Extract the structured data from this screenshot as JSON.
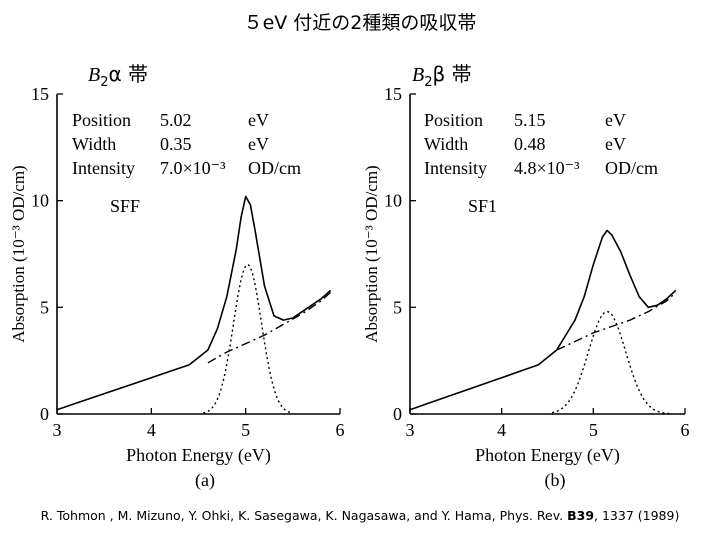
{
  "slide": {
    "title": "５eV 付近の2種類の吸収帯"
  },
  "bands": {
    "a": {
      "letter": "B",
      "sub": "2",
      "greek": "α",
      "kanji": "帯"
    },
    "b": {
      "letter": "B",
      "sub": "2",
      "greek": "β",
      "kanji": "帯"
    }
  },
  "citation": {
    "authors": "R. Tohmon , M. Mizuno, Y. Ohki, K. Sasegawa, K. Nagasawa, and Y. Hama, Phys. Rev.",
    "volume": "B39",
    "pages_year": ", 1337 (1989)"
  },
  "chart_data": [
    {
      "type": "line",
      "panel_label": "(a)",
      "sample": "SFF",
      "xlabel": "Photon Energy (eV)",
      "ylabel": "Absorption (10⁻³ OD/cm)",
      "xlim": [
        3,
        6
      ],
      "ylim": [
        0,
        15
      ],
      "xticks": [
        "3",
        "4",
        "5",
        "6"
      ],
      "yticks": [
        "0",
        "5",
        "10",
        "15"
      ],
      "param_table": [
        {
          "name": "Position",
          "value": "5.02",
          "unit": "eV"
        },
        {
          "name": "Width",
          "value": "0.35",
          "unit": "eV"
        },
        {
          "name": "Intensity",
          "value": "7.0×10⁻³",
          "unit": "OD/cm"
        }
      ],
      "series": [
        {
          "name": "measured",
          "style": "solid",
          "x": [
            3.0,
            3.2,
            3.4,
            3.6,
            3.8,
            4.0,
            4.2,
            4.4,
            4.6,
            4.7,
            4.8,
            4.9,
            4.95,
            5.0,
            5.05,
            5.1,
            5.2,
            5.3,
            5.4,
            5.5,
            5.6,
            5.7,
            5.8,
            5.9
          ],
          "y": [
            0.2,
            0.5,
            0.8,
            1.1,
            1.4,
            1.7,
            2.0,
            2.3,
            3.0,
            4.0,
            5.5,
            7.7,
            9.2,
            10.2,
            9.8,
            8.6,
            6.0,
            4.6,
            4.4,
            4.5,
            4.8,
            5.1,
            5.4,
            5.8
          ]
        },
        {
          "name": "background",
          "style": "dash-dot",
          "x": [
            4.6,
            4.8,
            5.0,
            5.2,
            5.4,
            5.6,
            5.8,
            5.9
          ],
          "y": [
            2.4,
            2.9,
            3.3,
            3.7,
            4.2,
            4.7,
            5.3,
            5.7
          ]
        },
        {
          "name": "gaussian fit",
          "style": "dotted",
          "center": 5.02,
          "fwhm": 0.35,
          "peak": 7.0,
          "xrange": [
            4.55,
            5.5
          ]
        }
      ]
    },
    {
      "type": "line",
      "panel_label": "(b)",
      "sample": "SF1",
      "xlabel": "Photon Energy (eV)",
      "ylabel": "Absorption (10⁻³ OD/cm)",
      "xlim": [
        3,
        6
      ],
      "ylim": [
        0,
        15
      ],
      "xticks": [
        "3",
        "4",
        "5",
        "6"
      ],
      "yticks": [
        "0",
        "5",
        "10",
        "15"
      ],
      "param_table": [
        {
          "name": "Position",
          "value": "5.15",
          "unit": "eV"
        },
        {
          "name": "Width",
          "value": "0.48",
          "unit": "eV"
        },
        {
          "name": "Intensity",
          "value": "4.8×10⁻³",
          "unit": "OD/cm"
        }
      ],
      "series": [
        {
          "name": "measured",
          "style": "solid",
          "x": [
            3.0,
            3.2,
            3.4,
            3.6,
            3.8,
            4.0,
            4.2,
            4.4,
            4.6,
            4.8,
            4.9,
            5.0,
            5.1,
            5.15,
            5.2,
            5.3,
            5.4,
            5.5,
            5.6,
            5.7,
            5.8,
            5.9
          ],
          "y": [
            0.2,
            0.5,
            0.8,
            1.1,
            1.4,
            1.7,
            2.0,
            2.3,
            3.0,
            4.4,
            5.5,
            7.0,
            8.3,
            8.6,
            8.4,
            7.6,
            6.5,
            5.5,
            5.0,
            5.1,
            5.4,
            5.8
          ]
        },
        {
          "name": "background",
          "style": "dash-dot",
          "x": [
            4.6,
            4.8,
            5.0,
            5.2,
            5.4,
            5.6,
            5.8,
            5.9
          ],
          "y": [
            3.0,
            3.4,
            3.8,
            4.1,
            4.4,
            4.8,
            5.3,
            5.7
          ]
        },
        {
          "name": "gaussian fit",
          "style": "dotted",
          "center": 5.15,
          "fwhm": 0.48,
          "peak": 4.8,
          "xrange": [
            4.55,
            5.85
          ]
        }
      ]
    }
  ]
}
